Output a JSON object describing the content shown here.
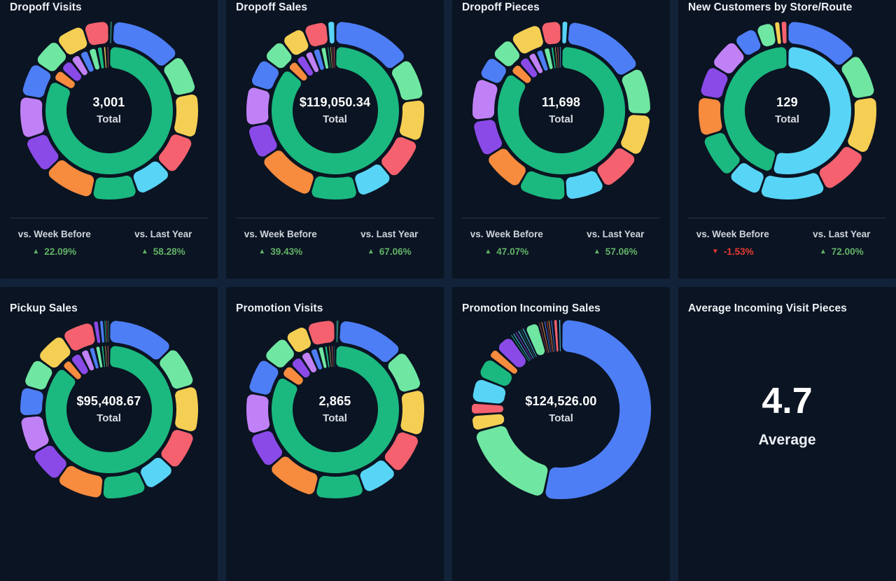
{
  "palette": {
    "blue": "#4d7ef6",
    "mint": "#6fe7a2",
    "yellow": "#f5cf53",
    "red": "#f5616e",
    "cyan": "#58d4f6",
    "green": "#1bb97f",
    "orange": "#f78b3e",
    "purple": "#8a4ae8",
    "lavender": "#c181f6",
    "teal": "#27746b",
    "darkred": "#a03c3c"
  },
  "colors": {
    "page_bg": "#122238",
    "card_bg": "#0b1422",
    "divider": "#26334b",
    "title": "#eef1f6",
    "up": "#61b267",
    "down": "#e53a31"
  },
  "icons": {
    "up": "▲",
    "down": "▼"
  },
  "cards": [
    {
      "title": "Dropoff Visits",
      "total": "3,001",
      "total_label": "Total",
      "chart_index": 0,
      "comparisons": [
        {
          "label": "vs. Week Before",
          "value": "22.09%",
          "direction": "up"
        },
        {
          "label": "vs. Last Year",
          "value": "58.28%",
          "direction": "up"
        }
      ]
    },
    {
      "title": "Dropoff Sales",
      "total": "$119,050.34",
      "total_label": "Total",
      "chart_index": 1,
      "comparisons": [
        {
          "label": "vs. Week Before",
          "value": "39.43%",
          "direction": "up"
        },
        {
          "label": "vs. Last Year",
          "value": "67.06%",
          "direction": "up"
        }
      ]
    },
    {
      "title": "Dropoff Pieces",
      "total": "11,698",
      "total_label": "Total",
      "chart_index": 2,
      "comparisons": [
        {
          "label": "vs. Week Before",
          "value": "47.07%",
          "direction": "up"
        },
        {
          "label": "vs. Last Year",
          "value": "57.06%",
          "direction": "up"
        }
      ]
    },
    {
      "title": "New Customers by Store/Route",
      "total": "129",
      "total_label": "Total",
      "chart_index": 3,
      "comparisons": [
        {
          "label": "vs. Week Before",
          "value": "-1.53%",
          "direction": "down"
        },
        {
          "label": "vs. Last Year",
          "value": "72.00%",
          "direction": "up"
        }
      ]
    },
    {
      "title": "Pickup Sales",
      "total": "$95,408.67",
      "total_label": "Total",
      "chart_index": 4
    },
    {
      "title": "Promotion Visits",
      "total": "2,865",
      "total_label": "Total",
      "chart_index": 5
    },
    {
      "title": "Promotion Incoming Sales",
      "total": "$124,526.00",
      "total_label": "Total",
      "chart_index": 6
    },
    {
      "title": "Average Incoming Visit Pieces",
      "metric": {
        "value": "4.7",
        "label": "Average"
      }
    }
  ],
  "chart_data": [
    {
      "type": "pie",
      "variant": "two-ring-donut",
      "title": "Dropoff Visits",
      "total": 3001,
      "unit": "percent_share",
      "rings": [
        {
          "name": "outer",
          "segments": [
            [
              "teal",
              0.7
            ],
            [
              "blue",
              13.5
            ],
            [
              "mint",
              7.5
            ],
            [
              "yellow",
              8.5
            ],
            [
              "red",
              7.5
            ],
            [
              "cyan",
              7
            ],
            [
              "green",
              8.5
            ],
            [
              "orange",
              9.5
            ],
            [
              "purple",
              7
            ],
            [
              "lavender",
              8
            ],
            [
              "blue",
              6.5
            ],
            [
              "mint",
              5.5
            ],
            [
              "yellow",
              5.5
            ],
            [
              "red",
              4.8
            ]
          ]
        },
        {
          "name": "inner",
          "segments": [
            [
              "green",
              83
            ],
            [
              "orange",
              3.2
            ],
            [
              "purple",
              3.4
            ],
            [
              "lavender",
              2.6
            ],
            [
              "blue",
              2.4
            ],
            [
              "mint",
              2.2
            ],
            [
              "green",
              1.6
            ],
            [
              "yellow",
              0.9
            ],
            [
              "red",
              0.7
            ]
          ]
        }
      ]
    },
    {
      "type": "pie",
      "variant": "two-ring-donut",
      "title": "Dropoff Sales",
      "total": 119050.34,
      "unit": "percent_share",
      "rings": [
        {
          "name": "outer",
          "segments": [
            [
              "blue",
              15
            ],
            [
              "mint",
              8
            ],
            [
              "yellow",
              8
            ],
            [
              "red",
              8
            ],
            [
              "cyan",
              7
            ],
            [
              "green",
              9
            ],
            [
              "orange",
              11
            ],
            [
              "purple",
              6.5
            ],
            [
              "lavender",
              7.5
            ],
            [
              "blue",
              5.5
            ],
            [
              "mint",
              4.5
            ],
            [
              "yellow",
              4.5
            ],
            [
              "red",
              4.5
            ],
            [
              "cyan",
              1.5
            ]
          ]
        },
        {
          "name": "inner",
          "segments": [
            [
              "green",
              86
            ],
            [
              "orange",
              2.8
            ],
            [
              "purple",
              2.6
            ],
            [
              "lavender",
              2.2
            ],
            [
              "blue",
              2.0
            ],
            [
              "mint",
              1.6
            ],
            [
              "green",
              0.8
            ],
            [
              "yellow",
              0.5
            ],
            [
              "darkred",
              0.4
            ],
            [
              "red",
              0.5
            ]
          ]
        }
      ]
    },
    {
      "type": "pie",
      "variant": "two-ring-donut",
      "title": "Dropoff Pieces",
      "total": 11698,
      "unit": "percent_share",
      "rings": [
        {
          "name": "outer",
          "segments": [
            [
              "cyan",
              1.3
            ],
            [
              "blue",
              15.5
            ],
            [
              "mint",
              9
            ],
            [
              "yellow",
              8
            ],
            [
              "red",
              8
            ],
            [
              "cyan",
              7.5
            ],
            [
              "green",
              9
            ],
            [
              "orange",
              8
            ],
            [
              "purple",
              7
            ],
            [
              "lavender",
              8
            ],
            [
              "blue",
              4.5
            ],
            [
              "mint",
              4.5
            ],
            [
              "yellow",
              6
            ],
            [
              "red",
              3.9
            ]
          ]
        },
        {
          "name": "inner",
          "segments": [
            [
              "green",
              84.5
            ],
            [
              "orange",
              3.0
            ],
            [
              "purple",
              2.8
            ],
            [
              "lavender",
              2.2
            ],
            [
              "blue",
              2.0
            ],
            [
              "mint",
              1.8
            ],
            [
              "green",
              1.0
            ],
            [
              "yellow",
              0.6
            ],
            [
              "red",
              0.6
            ],
            [
              "cyan",
              0.6
            ]
          ]
        }
      ]
    },
    {
      "type": "pie",
      "variant": "two-ring-donut",
      "title": "New Customers by Store/Route",
      "total": 129,
      "unit": "percent_share",
      "rings": [
        {
          "name": "outer",
          "segments": [
            [
              "blue",
              14
            ],
            [
              "mint",
              8.5
            ],
            [
              "yellow",
              11
            ],
            [
              "red",
              9.5
            ],
            [
              "cyan",
              12.5
            ],
            [
              "cyan",
              6.5
            ],
            [
              "green",
              8.5
            ],
            [
              "orange",
              7.5
            ],
            [
              "purple",
              6
            ],
            [
              "lavender",
              6
            ],
            [
              "blue",
              4.5
            ],
            [
              "mint",
              3.5
            ],
            [
              "yellow",
              1.2
            ],
            [
              "red",
              1.3
            ]
          ]
        },
        {
          "name": "inner",
          "segments": [
            [
              "cyan",
              54
            ],
            [
              "green",
              46
            ]
          ]
        }
      ]
    },
    {
      "type": "pie",
      "variant": "two-ring-donut",
      "title": "Pickup Sales",
      "total": 95408.67,
      "unit": "percent_share",
      "rings": [
        {
          "name": "outer",
          "segments": [
            [
              "blue",
              13.5
            ],
            [
              "mint",
              8.5
            ],
            [
              "yellow",
              9.5
            ],
            [
              "red",
              8
            ],
            [
              "cyan",
              6.5
            ],
            [
              "green",
              9
            ],
            [
              "orange",
              9.5
            ],
            [
              "purple",
              7
            ],
            [
              "lavender",
              7.5
            ],
            [
              "blue",
              6
            ],
            [
              "mint",
              6
            ],
            [
              "yellow",
              6.5
            ],
            [
              "red",
              6.5
            ],
            [
              "purple",
              1.2
            ],
            [
              "blue",
              1.0
            ],
            [
              "green",
              0.35
            ],
            [
              "darkred",
              0.3
            ],
            [
              "teal",
              0.35
            ]
          ]
        },
        {
          "name": "inner",
          "segments": [
            [
              "green",
              84
            ],
            [
              "orange",
              2.6
            ],
            [
              "purple",
              3.0
            ],
            [
              "lavender",
              2.2
            ],
            [
              "blue",
              1.6
            ],
            [
              "mint",
              1.4
            ],
            [
              "green",
              0.9
            ],
            [
              "yellow",
              0.6
            ],
            [
              "red",
              0.6
            ]
          ]
        }
      ]
    },
    {
      "type": "pie",
      "variant": "two-ring-donut",
      "title": "Promotion Visits",
      "total": 2865,
      "unit": "percent_share",
      "rings": [
        {
          "name": "outer",
          "segments": [
            [
              "teal",
              0.8
            ],
            [
              "blue",
              13
            ],
            [
              "mint",
              8
            ],
            [
              "yellow",
              9
            ],
            [
              "red",
              8
            ],
            [
              "cyan",
              7
            ],
            [
              "green",
              9.5
            ],
            [
              "orange",
              10
            ],
            [
              "purple",
              7
            ],
            [
              "lavender",
              8
            ],
            [
              "blue",
              7
            ],
            [
              "mint",
              5.5
            ],
            [
              "yellow",
              4.5
            ],
            [
              "red",
              5.5
            ]
          ]
        },
        {
          "name": "inner",
          "segments": [
            [
              "green",
              81.5
            ],
            [
              "orange",
              3.4
            ],
            [
              "purple",
              3.2
            ],
            [
              "lavender",
              2.6
            ],
            [
              "blue",
              2.0
            ],
            [
              "mint",
              1.6
            ],
            [
              "green",
              1.0
            ],
            [
              "yellow",
              0.7
            ],
            [
              "red",
              0.6
            ],
            [
              "teal",
              0.5
            ]
          ]
        }
      ]
    },
    {
      "type": "pie",
      "variant": "single-ring-donut",
      "title": "Promotion Incoming Sales",
      "total": 124526.0,
      "unit": "percent_share",
      "rings": [
        {
          "name": "outer",
          "segments": [
            [
              "blue",
              52.5
            ],
            [
              "mint",
              17.5
            ],
            [
              "yellow",
              3.0
            ],
            [
              "red",
              2.2
            ],
            [
              "cyan",
              4.6
            ],
            [
              "green",
              4.0
            ],
            [
              "orange",
              1.9
            ],
            [
              "purple",
              3.4
            ],
            [
              "green",
              0.4
            ],
            [
              "cyan",
              0.5
            ],
            [
              "purple",
              0.5
            ],
            [
              "cyan",
              0.5
            ],
            [
              "teal",
              0.4
            ],
            [
              "cyan",
              0.5
            ],
            [
              "mint",
              2.6
            ],
            [
              "darkred",
              0.4
            ],
            [
              "orange",
              0.5
            ],
            [
              "blue",
              0.5
            ],
            [
              "darkred",
              0.3
            ],
            [
              "orange",
              0.4
            ],
            [
              "blue",
              0.5
            ],
            [
              "red",
              0.9
            ],
            [
              "cyan",
              0.6
            ]
          ]
        }
      ]
    }
  ]
}
